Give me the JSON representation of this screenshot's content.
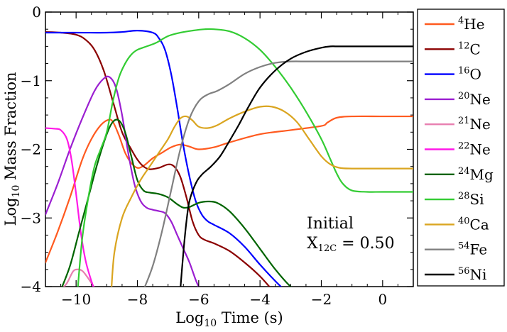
{
  "chart_data": {
    "type": "line",
    "title": "",
    "xlabel": "Log10 Time (s)",
    "ylabel": "Log10 Mass Fraction",
    "xlim": [
      -11,
      1
    ],
    "ylim": [
      -4,
      0
    ],
    "xticks": [
      -10,
      -8,
      -6,
      -4,
      -2,
      0
    ],
    "yticks": [
      0,
      -1,
      -2,
      -3,
      -4
    ],
    "xtick_labels": [
      "−10",
      "−8",
      "−6",
      "−4",
      "−2",
      "0"
    ],
    "ytick_labels": [
      "0",
      "−1",
      "−2",
      "−3",
      "−4"
    ],
    "legend_position": "outside-right",
    "annotation": {
      "line1": "Initial",
      "line2_prefix": "X",
      "line2_sub": "12C",
      "line2_value": " = 0.50"
    },
    "series": [
      {
        "name": "4He",
        "mass": "4",
        "element": "He",
        "color": "#ff5a1f",
        "x": [
          -11,
          -10.6,
          -10.2,
          -9.8,
          -9.5,
          -9.2,
          -8.95,
          -8.8,
          -8.6,
          -8.4,
          -8.2,
          -8.0,
          -7.8,
          -7.5,
          -7.2,
          -6.9,
          -6.6,
          -6.3,
          -6.0,
          -5.5,
          -5.0,
          -4.0,
          -3.0,
          -2.0,
          -1.8,
          -1.5,
          -1.0,
          0,
          1
        ],
        "y": [
          -3.65,
          -3.2,
          -2.7,
          -2.15,
          -1.85,
          -1.65,
          -1.57,
          -1.6,
          -1.8,
          -2.05,
          -2.2,
          -2.27,
          -2.24,
          -2.13,
          -2.05,
          -1.97,
          -1.93,
          -1.96,
          -2.0,
          -1.97,
          -1.9,
          -1.78,
          -1.72,
          -1.66,
          -1.61,
          -1.54,
          -1.52,
          -1.52,
          -1.52
        ]
      },
      {
        "name": "12C",
        "mass": "12",
        "element": "C",
        "color": "#8b0000",
        "x": [
          -11,
          -10.5,
          -10.0,
          -9.7,
          -9.4,
          -9.1,
          -8.8,
          -8.5,
          -8.2,
          -8.0,
          -7.8,
          -7.6,
          -7.3,
          -7.0,
          -6.8,
          -6.6,
          -6.4,
          -6.2,
          -6.0,
          -5.8,
          -5.5,
          -5.0,
          -4.5,
          -4.0,
          -3.6
        ],
        "y": [
          -0.29,
          -0.3,
          -0.33,
          -0.4,
          -0.55,
          -0.85,
          -1.3,
          -1.75,
          -2.0,
          -2.15,
          -2.25,
          -2.29,
          -2.27,
          -2.22,
          -2.25,
          -2.4,
          -2.7,
          -3.05,
          -3.25,
          -3.32,
          -3.37,
          -3.48,
          -3.65,
          -3.85,
          -4.05
        ]
      },
      {
        "name": "16O",
        "mass": "16",
        "element": "O",
        "color": "#0000ff",
        "x": [
          -11,
          -10,
          -9,
          -8.5,
          -8.0,
          -7.5,
          -7.3,
          -7.1,
          -6.9,
          -6.7,
          -6.5,
          -6.3,
          -6.1,
          -5.9,
          -5.7,
          -5.5,
          -5.0,
          -4.5,
          -4.0,
          -3.5,
          -3.2
        ],
        "y": [
          -0.3,
          -0.3,
          -0.3,
          -0.29,
          -0.27,
          -0.3,
          -0.38,
          -0.55,
          -0.9,
          -1.4,
          -1.95,
          -2.4,
          -2.75,
          -2.95,
          -3.05,
          -3.1,
          -3.22,
          -3.42,
          -3.68,
          -3.92,
          -4.05
        ]
      },
      {
        "name": "20Ne",
        "mass": "20",
        "element": "Ne",
        "color": "#9b1fd1",
        "x": [
          -11,
          -10.6,
          -10.2,
          -9.8,
          -9.4,
          -9.1,
          -8.9,
          -8.7,
          -8.5,
          -8.3,
          -8.1,
          -7.9,
          -7.7,
          -7.5,
          -7.3,
          -7.1,
          -6.9,
          -6.7,
          -6.5,
          -6.3,
          -6.1,
          -5.95
        ],
        "y": [
          -2.95,
          -2.5,
          -2.0,
          -1.55,
          -1.15,
          -0.97,
          -0.95,
          -1.1,
          -1.5,
          -2.05,
          -2.5,
          -2.75,
          -2.85,
          -2.88,
          -2.9,
          -2.93,
          -3.05,
          -3.25,
          -3.45,
          -3.65,
          -3.9,
          -4.05
        ]
      },
      {
        "name": "21Ne",
        "mass": "21",
        "element": "Ne",
        "color": "#e87fb0",
        "x": [
          -10.5,
          -10.3,
          -10.1,
          -9.95,
          -9.8,
          -9.65,
          -9.5,
          -9.35
        ],
        "y": [
          -4.05,
          -3.95,
          -3.78,
          -3.75,
          -3.77,
          -3.85,
          -3.95,
          -4.05
        ]
      },
      {
        "name": "22Ne",
        "mass": "22",
        "element": "Ne",
        "color": "#ff19e8",
        "x": [
          -11,
          -10.7,
          -10.5,
          -10.3,
          -10.15,
          -10.0,
          -9.85,
          -9.7,
          -9.55,
          -9.4
        ],
        "y": [
          -1.69,
          -1.7,
          -1.72,
          -1.85,
          -2.15,
          -2.65,
          -3.2,
          -3.6,
          -3.85,
          -4.05
        ]
      },
      {
        "name": "24Mg",
        "mass": "24",
        "element": "Mg",
        "color": "#006400",
        "x": [
          -10.5,
          -10.2,
          -9.9,
          -9.6,
          -9.3,
          -9.0,
          -8.8,
          -8.6,
          -8.4,
          -8.2,
          -8.0,
          -7.8,
          -7.6,
          -7.3,
          -7.0,
          -6.7,
          -6.5,
          -6.3,
          -6.0,
          -5.7,
          -5.4,
          -5.0,
          -4.5,
          -4.0,
          -3.5,
          -3.0,
          -2.75
        ],
        "y": [
          -4.05,
          -3.7,
          -3.2,
          -2.7,
          -2.2,
          -1.78,
          -1.6,
          -1.58,
          -1.75,
          -2.1,
          -2.45,
          -2.6,
          -2.63,
          -2.65,
          -2.7,
          -2.8,
          -2.85,
          -2.84,
          -2.78,
          -2.76,
          -2.78,
          -2.9,
          -3.15,
          -3.45,
          -3.75,
          -4.0,
          -4.05
        ]
      },
      {
        "name": "28Si",
        "mass": "28",
        "element": "Si",
        "color": "#33cc33",
        "x": [
          -9.95,
          -9.8,
          -9.6,
          -9.4,
          -9.2,
          -9.0,
          -8.8,
          -8.6,
          -8.4,
          -8.2,
          -8.0,
          -7.7,
          -7.4,
          -7.0,
          -6.6,
          -6.2,
          -5.8,
          -5.5,
          -5.0,
          -4.5,
          -4.0,
          -3.5,
          -3.0,
          -2.5,
          -2.0,
          -1.7,
          -1.5,
          -1.3,
          -1.0,
          -0.5,
          0,
          1
        ],
        "y": [
          -4.05,
          -3.3,
          -2.7,
          -2.25,
          -2.0,
          -1.75,
          -1.3,
          -0.95,
          -0.75,
          -0.62,
          -0.55,
          -0.5,
          -0.45,
          -0.35,
          -0.3,
          -0.27,
          -0.25,
          -0.25,
          -0.28,
          -0.38,
          -0.55,
          -0.8,
          -1.1,
          -1.45,
          -1.85,
          -2.15,
          -2.35,
          -2.5,
          -2.6,
          -2.62,
          -2.62,
          -2.62
        ]
      },
      {
        "name": "40Ca",
        "mass": "40",
        "element": "Ca",
        "color": "#daa520",
        "x": [
          -8.85,
          -8.75,
          -8.5,
          -8.2,
          -7.9,
          -7.6,
          -7.3,
          -7.0,
          -6.8,
          -6.6,
          -6.4,
          -6.2,
          -6.0,
          -5.7,
          -5.4,
          -5.0,
          -4.5,
          -4.0,
          -3.6,
          -3.2,
          -2.8,
          -2.4,
          -2.0,
          -1.7,
          -1.4,
          -1.0,
          0,
          1
        ],
        "y": [
          -4.05,
          -3.5,
          -3.0,
          -2.7,
          -2.45,
          -2.25,
          -2.05,
          -1.85,
          -1.68,
          -1.55,
          -1.52,
          -1.58,
          -1.67,
          -1.69,
          -1.65,
          -1.55,
          -1.45,
          -1.38,
          -1.38,
          -1.45,
          -1.6,
          -1.85,
          -2.1,
          -2.22,
          -2.27,
          -2.28,
          -2.28,
          -2.28
        ]
      },
      {
        "name": "54Fe",
        "mass": "54",
        "element": "Fe",
        "color": "#808080",
        "x": [
          -7.8,
          -7.5,
          -7.2,
          -6.9,
          -6.6,
          -6.3,
          -6.0,
          -5.7,
          -5.4,
          -5.0,
          -4.5,
          -4.0,
          -3.5,
          -3.0,
          -2.5,
          -2.0,
          -1.5,
          0,
          1
        ],
        "y": [
          -4.05,
          -3.7,
          -3.2,
          -2.6,
          -2.0,
          -1.55,
          -1.3,
          -1.2,
          -1.15,
          -1.05,
          -0.9,
          -0.8,
          -0.74,
          -0.72,
          -0.72,
          -0.72,
          -0.72,
          -0.72,
          -0.72
        ]
      },
      {
        "name": "56Ni",
        "mass": "56",
        "element": "Ni",
        "color": "#000000",
        "x": [
          -6.6,
          -6.5,
          -6.4,
          -6.3,
          -6.1,
          -5.9,
          -5.6,
          -5.3,
          -5.0,
          -4.7,
          -4.4,
          -4.0,
          -3.5,
          -3.0,
          -2.5,
          -2.0,
          -1.7,
          -1.5,
          -1.0,
          0,
          1
        ],
        "y": [
          -4.05,
          -3.5,
          -3.05,
          -2.75,
          -2.5,
          -2.37,
          -2.25,
          -2.1,
          -1.88,
          -1.65,
          -1.4,
          -1.1,
          -0.85,
          -0.68,
          -0.58,
          -0.52,
          -0.5,
          -0.5,
          -0.5,
          -0.5,
          -0.5
        ]
      }
    ]
  }
}
